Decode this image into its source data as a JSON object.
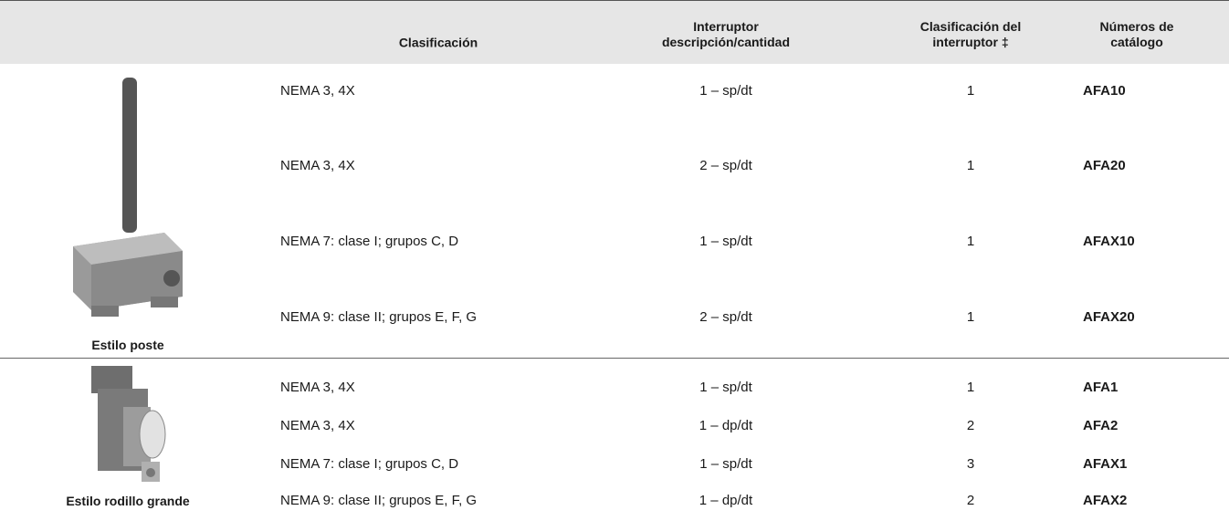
{
  "table": {
    "header": {
      "classification": "Clasificación",
      "switch": "Interruptor\ndescripción/cantidad",
      "rating": "Clasificación del\ninterruptor ‡",
      "catalog": "Números de\ncatálogo"
    },
    "sections": [
      {
        "label": "Estilo poste",
        "rows": [
          [
            "NEMA 3, 4X",
            "1 – sp/dt",
            1,
            "AFA10"
          ],
          [
            "NEMA 3, 4X",
            "2 – sp/dt",
            1,
            "AFA20"
          ],
          [
            "NEMA 7: clase I; grupos C, D",
            "1 – sp/dt",
            1,
            "AFAX10"
          ],
          [
            "NEMA 9: clase II; grupos E, F, G",
            "2 – sp/dt",
            1,
            "AFAX20"
          ]
        ]
      },
      {
        "label": "Estilo rodillo grande",
        "rows": [
          [
            "NEMA 3, 4X",
            "1 – sp/dt",
            1,
            "AFA1"
          ],
          [
            "NEMA 3, 4X",
            "1 – dp/dt",
            2,
            "AFA2"
          ],
          [
            "NEMA 7: clase I; grupos C, D",
            "1 – sp/dt",
            3,
            "AFAX1"
          ],
          [
            "NEMA 9: clase II; grupos E, F, G",
            "1 – dp/dt",
            2,
            "AFAX2"
          ]
        ]
      }
    ]
  }
}
